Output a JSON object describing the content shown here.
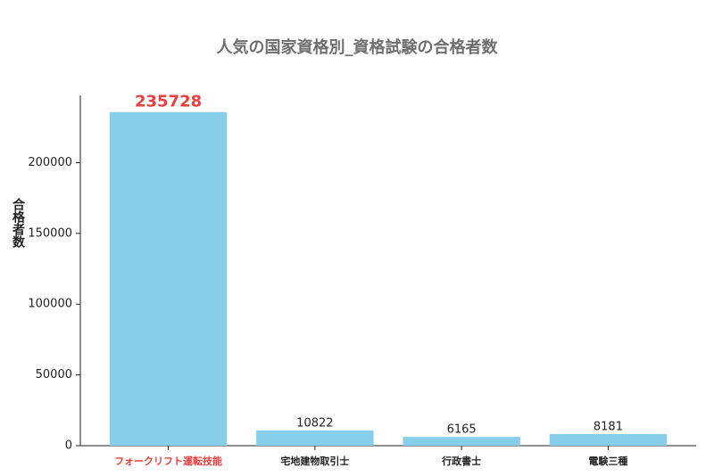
{
  "chart_data": {
    "type": "bar",
    "title": "人気の国家資格別_資格試験の合格者数",
    "y_label": "合格者数",
    "categories": [
      "フォークリフト運転技能",
      "宅地建物取引士",
      "行政書士",
      "電験三種"
    ],
    "values": [
      235728,
      10822,
      6165,
      8181
    ],
    "color": "#87ceeb",
    "label_colors": [
      "#f03c3c",
      "#222222",
      "#222222",
      "#222222"
    ],
    "ylim": [
      0,
      247514
    ],
    "yticks": [
      0,
      50000,
      100000,
      150000,
      200000
    ],
    "grid": false
  }
}
